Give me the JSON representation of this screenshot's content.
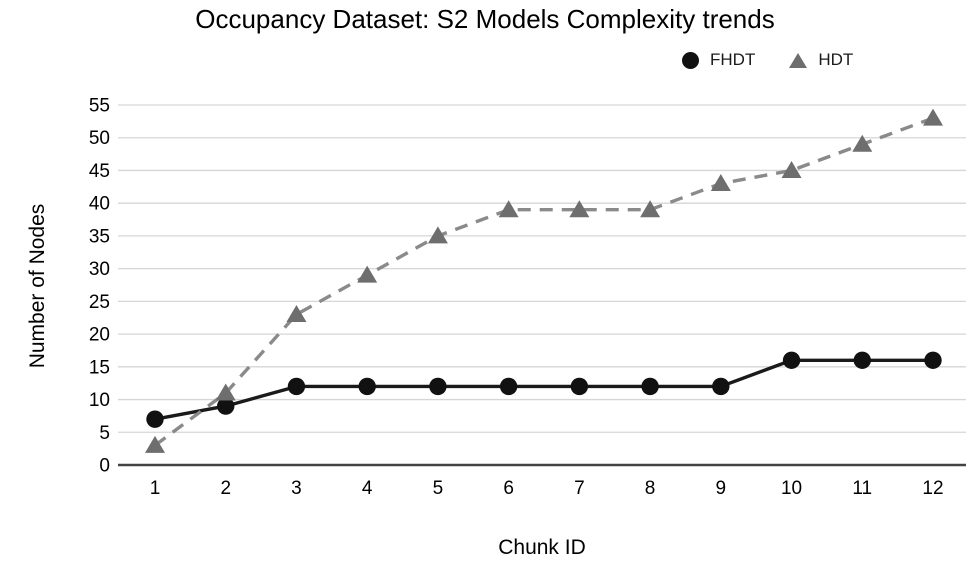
{
  "chart_data": {
    "type": "line",
    "title": "Occupancy Dataset: S2 Models Complexity trends",
    "xlabel": "Chunk ID",
    "ylabel": "Number of Nodes",
    "categories": [
      1,
      2,
      3,
      4,
      5,
      6,
      7,
      8,
      9,
      10,
      11,
      12
    ],
    "yticks": [
      0,
      5,
      10,
      15,
      20,
      25,
      30,
      35,
      40,
      45,
      50,
      55
    ],
    "ylim": [
      0,
      55
    ],
    "grid": "horizontal",
    "legend_position": "top-right",
    "series": [
      {
        "name": "FHDT",
        "marker": "circle",
        "line_style": "solid",
        "color": "#111111",
        "line_color": "#1a1a1a",
        "values": [
          7,
          9,
          12,
          12,
          12,
          12,
          12,
          12,
          12,
          16,
          16,
          16
        ]
      },
      {
        "name": "HDT",
        "marker": "triangle",
        "line_style": "dashed",
        "color": "#6e6e6e",
        "line_color": "#8a8a8a",
        "values": [
          3,
          11,
          23,
          29,
          35,
          39,
          39,
          39,
          43,
          45,
          49,
          53
        ]
      }
    ],
    "colors": {
      "gridline": "#d6d6d6",
      "axis_line": "#424242",
      "background": "#ffffff"
    }
  }
}
